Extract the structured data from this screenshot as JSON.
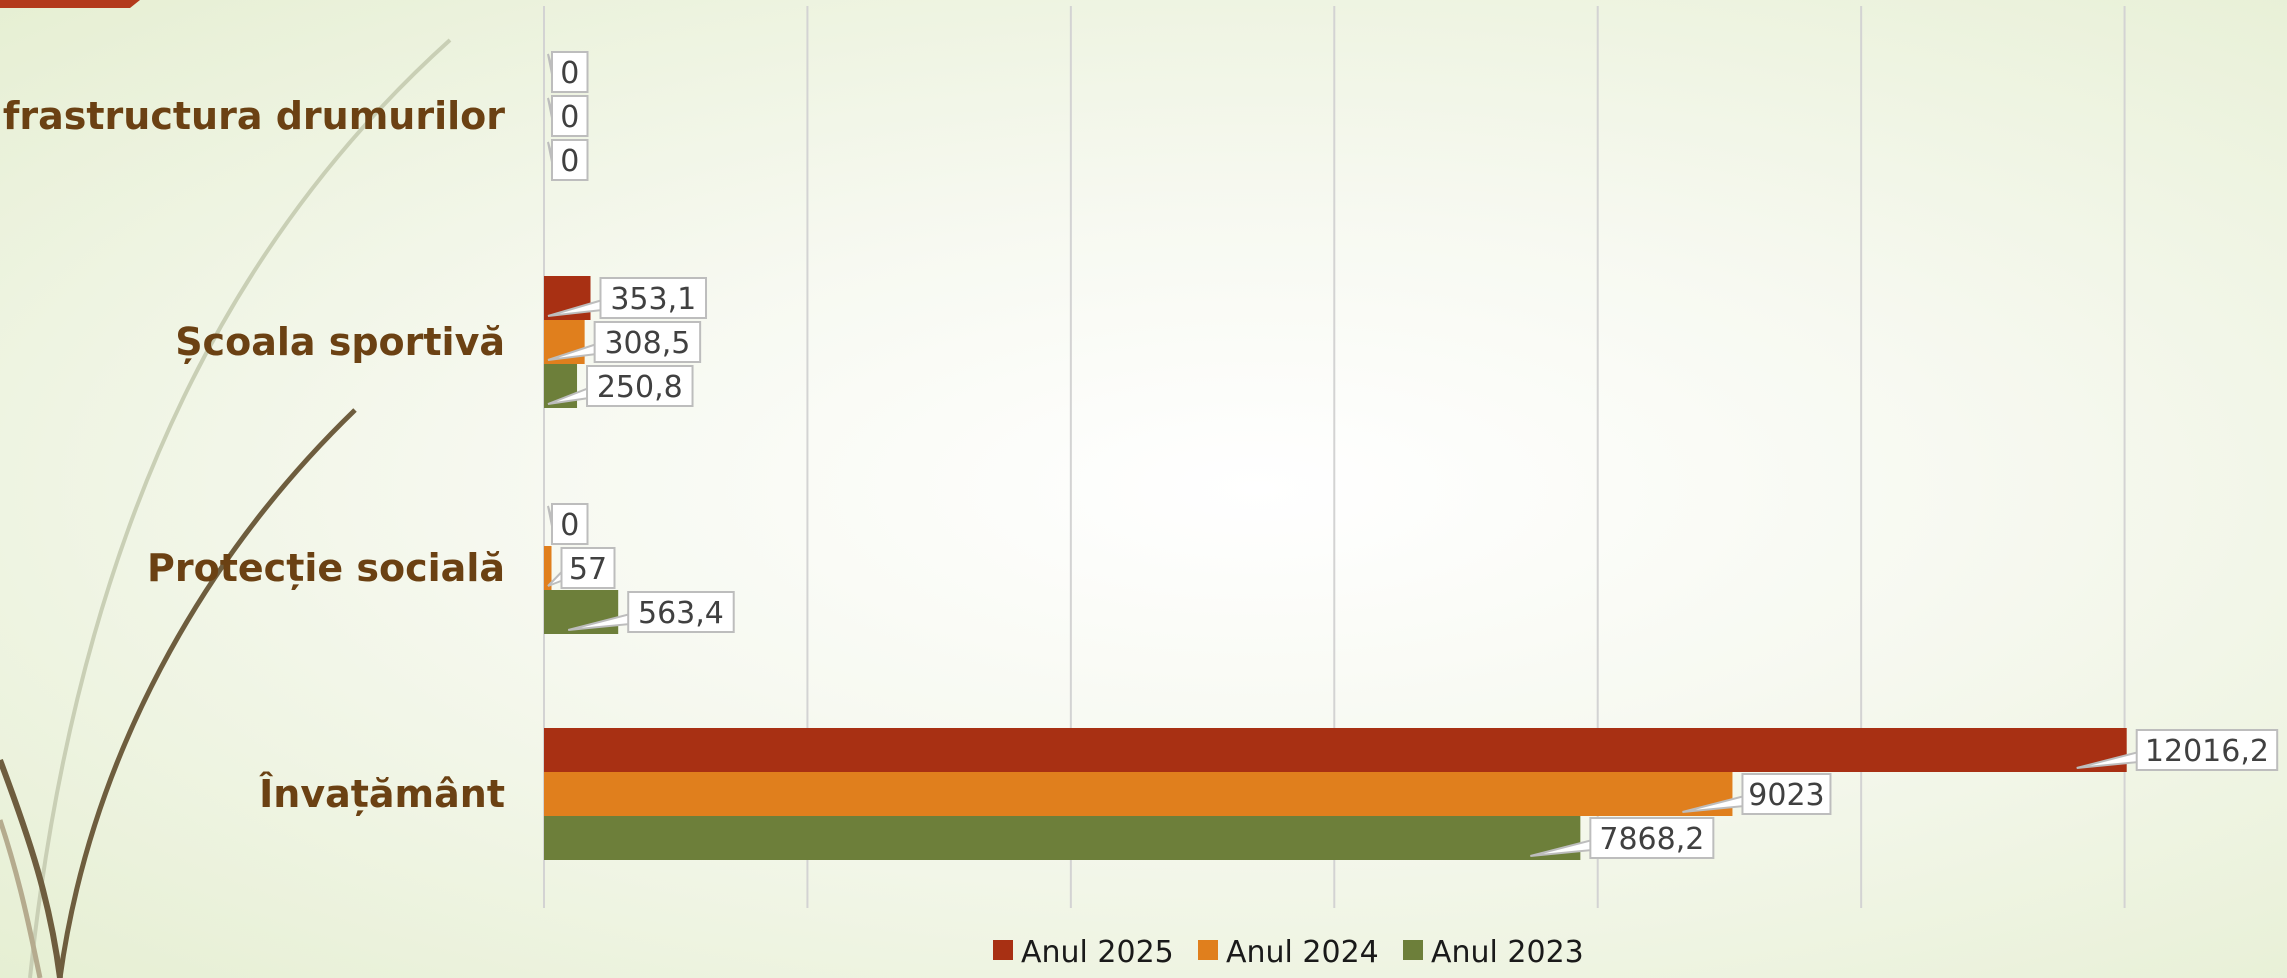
{
  "chart_data": {
    "type": "bar",
    "orientation": "horizontal",
    "categories": [
      "Infrastructura drumurilor",
      "Școala sportivă",
      "Protecție socială",
      "Învațământ"
    ],
    "series": [
      {
        "name": "Anul 2025",
        "color": "#a83013",
        "values": [
          0,
          353.1,
          0,
          12016.2
        ],
        "labels": [
          "0",
          "353,1",
          "0",
          "12016,2"
        ]
      },
      {
        "name": "Anul 2024",
        "color": "#e07f1d",
        "values": [
          0,
          308.5,
          57,
          9023
        ],
        "labels": [
          "0",
          "308,5",
          "57",
          "9023"
        ]
      },
      {
        "name": "Anul 2023",
        "color": "#6d7f3a",
        "values": [
          0,
          250.8,
          563.4,
          7868.2
        ],
        "labels": [
          "0",
          "250,8",
          "563,4",
          "7868,2"
        ]
      }
    ],
    "xlim": [
      0,
      14000
    ],
    "grid": true,
    "legend": "bottom",
    "title": "",
    "xlabel": "",
    "ylabel": ""
  }
}
